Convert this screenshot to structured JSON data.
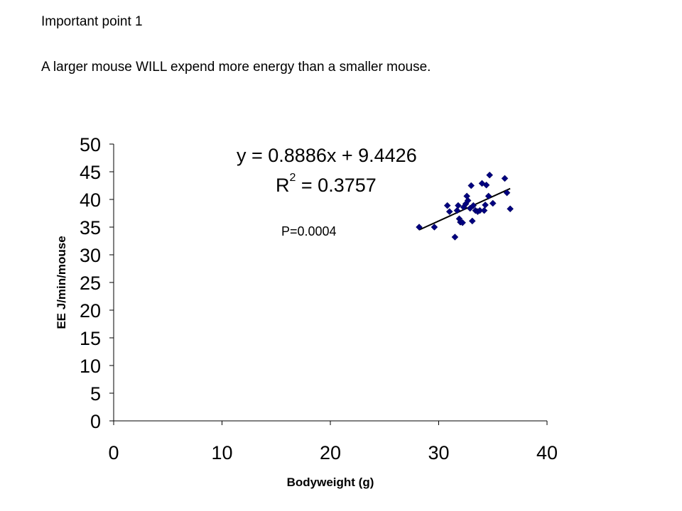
{
  "slide": {
    "heading": "Important point 1",
    "body": "A larger mouse WILL expend more energy than a smaller mouse."
  },
  "chart_data": {
    "type": "scatter",
    "xlabel": "Bodyweight (g)",
    "ylabel": "EE J/min/mouse",
    "xlim": [
      0,
      40
    ],
    "ylim": [
      0,
      50
    ],
    "x_ticks": [
      "0",
      "10",
      "20",
      "30",
      "40"
    ],
    "y_ticks": [
      "0",
      "5",
      "10",
      "15",
      "20",
      "25",
      "30",
      "35",
      "40",
      "45",
      "50"
    ],
    "grid": false,
    "legend": "none",
    "marker": "diamond",
    "marker_color": "#000080",
    "trendline": {
      "type": "linear",
      "slope": 0.8886,
      "intercept": 9.4426,
      "x_range": [
        28.2,
        36.6
      ]
    },
    "annotations": {
      "equation": "y = 0.8886x + 9.4426",
      "r2_prefix": "R",
      "r2_exp": "2",
      "r2_suffix": " = 0.3757",
      "p_value": "P=0.0004"
    },
    "points": [
      [
        28.2,
        35.0
      ],
      [
        29.6,
        35.0
      ],
      [
        30.8,
        38.9
      ],
      [
        31.0,
        37.8
      ],
      [
        31.5,
        33.2
      ],
      [
        31.7,
        38.0
      ],
      [
        31.8,
        38.9
      ],
      [
        31.9,
        36.5
      ],
      [
        32.0,
        35.9
      ],
      [
        32.2,
        35.8
      ],
      [
        32.3,
        38.6
      ],
      [
        32.5,
        39.2
      ],
      [
        32.6,
        40.6
      ],
      [
        32.7,
        39.8
      ],
      [
        32.9,
        38.4
      ],
      [
        33.0,
        42.5
      ],
      [
        33.1,
        36.1
      ],
      [
        33.2,
        38.9
      ],
      [
        33.4,
        38.0
      ],
      [
        33.6,
        37.8
      ],
      [
        33.8,
        38.0
      ],
      [
        34.0,
        42.9
      ],
      [
        34.2,
        38.0
      ],
      [
        34.3,
        39.0
      ],
      [
        34.4,
        42.6
      ],
      [
        34.6,
        40.6
      ],
      [
        34.7,
        44.4
      ],
      [
        35.0,
        39.3
      ],
      [
        36.1,
        43.8
      ],
      [
        36.3,
        41.2
      ],
      [
        36.6,
        38.3
      ]
    ]
  }
}
